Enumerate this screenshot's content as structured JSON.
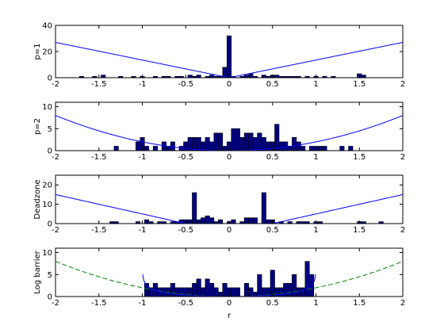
{
  "figure": {
    "background": "#ffffff",
    "axes_color": "#000000",
    "bar_fill": "#000080",
    "bar_edge": "#000000",
    "penalty_color": "#0000ff",
    "log_barrier_dashed_color": "#008000"
  },
  "chart_data": [
    {
      "type": "bar",
      "ylabel": "p=1",
      "xlim": [
        -2,
        2
      ],
      "ylim": [
        0,
        40
      ],
      "xticks": [
        -2,
        -1.5,
        -1,
        -0.5,
        0,
        0.5,
        1,
        1.5,
        2
      ],
      "xtick_labels": [
        "-2",
        "-1.5",
        "-1",
        "-0.5",
        "0",
        "0.5",
        "1",
        "1.5",
        "2"
      ],
      "yticks": [
        0,
        20,
        40
      ],
      "ytick_labels": [
        "0",
        "20",
        "40"
      ],
      "bin_width": 0.05,
      "bars": [
        {
          "x": -1.7,
          "y": 1
        },
        {
          "x": -1.55,
          "y": 1
        },
        {
          "x": -1.45,
          "y": 2
        },
        {
          "x": -1.25,
          "y": 1
        },
        {
          "x": -1.1,
          "y": 1
        },
        {
          "x": -1.0,
          "y": 1
        },
        {
          "x": -0.85,
          "y": 1
        },
        {
          "x": -0.75,
          "y": 1
        },
        {
          "x": -0.7,
          "y": 1
        },
        {
          "x": -0.6,
          "y": 1
        },
        {
          "x": -0.55,
          "y": 1
        },
        {
          "x": -0.45,
          "y": 2
        },
        {
          "x": -0.4,
          "y": 1
        },
        {
          "x": -0.35,
          "y": 2
        },
        {
          "x": -0.25,
          "y": 1
        },
        {
          "x": -0.2,
          "y": 2
        },
        {
          "x": -0.15,
          "y": 1
        },
        {
          "x": -0.1,
          "y": 1
        },
        {
          "x": -0.05,
          "y": 8
        },
        {
          "x": 0.0,
          "y": 32
        },
        {
          "x": 0.05,
          "y": 1
        },
        {
          "x": 0.15,
          "y": 1
        },
        {
          "x": 0.2,
          "y": 2
        },
        {
          "x": 0.25,
          "y": 3
        },
        {
          "x": 0.3,
          "y": 1
        },
        {
          "x": 0.4,
          "y": 2
        },
        {
          "x": 0.45,
          "y": 1
        },
        {
          "x": 0.5,
          "y": 2
        },
        {
          "x": 0.55,
          "y": 2
        },
        {
          "x": 0.6,
          "y": 1
        },
        {
          "x": 0.65,
          "y": 1
        },
        {
          "x": 0.7,
          "y": 1
        },
        {
          "x": 0.75,
          "y": 1
        },
        {
          "x": 0.8,
          "y": 1
        },
        {
          "x": 0.9,
          "y": 1
        },
        {
          "x": 1.0,
          "y": 1
        },
        {
          "x": 1.1,
          "y": 1
        },
        {
          "x": 1.2,
          "y": 1
        },
        {
          "x": 1.5,
          "y": 3
        },
        {
          "x": 1.55,
          "y": 2
        }
      ],
      "penalty_curve": {
        "kind": "abs",
        "scale": 13.5,
        "style": "solid"
      }
    },
    {
      "type": "bar",
      "ylabel": "p=2",
      "xlim": [
        -2,
        2
      ],
      "ylim": [
        0,
        11
      ],
      "xticks": [
        -2,
        -1.5,
        -1,
        -0.5,
        0,
        0.5,
        1,
        1.5,
        2
      ],
      "xtick_labels": [
        "-2",
        "-1.5",
        "-1",
        "-0.5",
        "0",
        "0.5",
        "1",
        "1.5",
        "2"
      ],
      "yticks": [
        0,
        5,
        10
      ],
      "ytick_labels": [
        "0",
        "5",
        "10"
      ],
      "bin_width": 0.05,
      "bars": [
        {
          "x": -1.3,
          "y": 1
        },
        {
          "x": -1.05,
          "y": 2
        },
        {
          "x": -1.0,
          "y": 3
        },
        {
          "x": -0.95,
          "y": 1
        },
        {
          "x": -0.85,
          "y": 1
        },
        {
          "x": -0.75,
          "y": 2
        },
        {
          "x": -0.7,
          "y": 1
        },
        {
          "x": -0.65,
          "y": 2
        },
        {
          "x": -0.55,
          "y": 1
        },
        {
          "x": -0.5,
          "y": 2
        },
        {
          "x": -0.45,
          "y": 3
        },
        {
          "x": -0.4,
          "y": 3
        },
        {
          "x": -0.35,
          "y": 3
        },
        {
          "x": -0.3,
          "y": 2
        },
        {
          "x": -0.25,
          "y": 3
        },
        {
          "x": -0.2,
          "y": 2
        },
        {
          "x": -0.15,
          "y": 4
        },
        {
          "x": -0.1,
          "y": 4
        },
        {
          "x": -0.05,
          "y": 1
        },
        {
          "x": 0.0,
          "y": 2
        },
        {
          "x": 0.05,
          "y": 5
        },
        {
          "x": 0.1,
          "y": 5
        },
        {
          "x": 0.15,
          "y": 3
        },
        {
          "x": 0.2,
          "y": 4
        },
        {
          "x": 0.25,
          "y": 4
        },
        {
          "x": 0.3,
          "y": 3
        },
        {
          "x": 0.35,
          "y": 4
        },
        {
          "x": 0.4,
          "y": 3
        },
        {
          "x": 0.45,
          "y": 2
        },
        {
          "x": 0.5,
          "y": 2
        },
        {
          "x": 0.55,
          "y": 6
        },
        {
          "x": 0.6,
          "y": 2
        },
        {
          "x": 0.65,
          "y": 2
        },
        {
          "x": 0.7,
          "y": 1
        },
        {
          "x": 0.75,
          "y": 3
        },
        {
          "x": 0.8,
          "y": 2
        },
        {
          "x": 0.85,
          "y": 1
        },
        {
          "x": 0.95,
          "y": 1
        },
        {
          "x": 1.0,
          "y": 1
        },
        {
          "x": 1.05,
          "y": 1
        },
        {
          "x": 1.1,
          "y": 1
        },
        {
          "x": 1.3,
          "y": 1
        },
        {
          "x": 1.4,
          "y": 1
        }
      ],
      "penalty_curve": {
        "kind": "square",
        "scale": 2.0,
        "style": "solid"
      }
    },
    {
      "type": "bar",
      "ylabel": "Deadzone",
      "xlim": [
        -2,
        2
      ],
      "ylim": [
        0,
        25
      ],
      "xticks": [
        -2,
        -1.5,
        -1,
        -0.5,
        0,
        0.5,
        1,
        1.5,
        2
      ],
      "xtick_labels": [
        "-2",
        "-1.5",
        "-1",
        "-0.5",
        "0",
        "0.5",
        "1",
        "1.5",
        "2"
      ],
      "yticks": [
        0,
        10,
        20
      ],
      "ytick_labels": [
        "0",
        "10",
        "20"
      ],
      "bin_width": 0.05,
      "bars": [
        {
          "x": -1.35,
          "y": 1
        },
        {
          "x": -1.3,
          "y": 1
        },
        {
          "x": -1.05,
          "y": 1
        },
        {
          "x": -0.95,
          "y": 2
        },
        {
          "x": -0.9,
          "y": 1
        },
        {
          "x": -0.8,
          "y": 1
        },
        {
          "x": -0.75,
          "y": 1
        },
        {
          "x": -0.65,
          "y": 1
        },
        {
          "x": -0.6,
          "y": 1
        },
        {
          "x": -0.55,
          "y": 2
        },
        {
          "x": -0.5,
          "y": 2
        },
        {
          "x": -0.45,
          "y": 2
        },
        {
          "x": -0.4,
          "y": 16
        },
        {
          "x": -0.35,
          "y": 2
        },
        {
          "x": -0.3,
          "y": 3
        },
        {
          "x": -0.25,
          "y": 4
        },
        {
          "x": -0.2,
          "y": 3
        },
        {
          "x": -0.15,
          "y": 1
        },
        {
          "x": -0.1,
          "y": 2
        },
        {
          "x": 0.0,
          "y": 1
        },
        {
          "x": 0.05,
          "y": 2
        },
        {
          "x": 0.15,
          "y": 1
        },
        {
          "x": 0.2,
          "y": 3
        },
        {
          "x": 0.25,
          "y": 3
        },
        {
          "x": 0.3,
          "y": 3
        },
        {
          "x": 0.4,
          "y": 16
        },
        {
          "x": 0.45,
          "y": 2
        },
        {
          "x": 0.5,
          "y": 2
        },
        {
          "x": 0.6,
          "y": 1
        },
        {
          "x": 0.7,
          "y": 1
        },
        {
          "x": 0.8,
          "y": 1
        },
        {
          "x": 0.85,
          "y": 1
        },
        {
          "x": 0.9,
          "y": 1
        },
        {
          "x": 1.0,
          "y": 1
        },
        {
          "x": 1.05,
          "y": 1
        },
        {
          "x": 1.5,
          "y": 1
        },
        {
          "x": 1.55,
          "y": 1
        },
        {
          "x": 1.75,
          "y": 1
        }
      ],
      "penalty_curve": {
        "kind": "deadzone",
        "threshold": 0.5,
        "scale": 10.0,
        "style": "solid"
      }
    },
    {
      "type": "bar",
      "ylabel": "Log barrier",
      "xlabel": "r",
      "xlim": [
        -2,
        2
      ],
      "ylim": [
        0,
        11
      ],
      "xticks": [
        -2,
        -1.5,
        -1,
        -0.5,
        0,
        0.5,
        1,
        1.5,
        2
      ],
      "xtick_labels": [
        "-2",
        "-1.5",
        "-1",
        "-0.5",
        "0",
        "0.5",
        "1",
        "1.5",
        "2"
      ],
      "yticks": [
        0,
        5,
        10
      ],
      "ytick_labels": [
        "0",
        "5",
        "10"
      ],
      "bin_width": 0.05,
      "bars": [
        {
          "x": -0.95,
          "y": 3
        },
        {
          "x": -0.9,
          "y": 2
        },
        {
          "x": -0.85,
          "y": 3
        },
        {
          "x": -0.8,
          "y": 2
        },
        {
          "x": -0.75,
          "y": 2
        },
        {
          "x": -0.7,
          "y": 2
        },
        {
          "x": -0.65,
          "y": 3
        },
        {
          "x": -0.6,
          "y": 2
        },
        {
          "x": -0.55,
          "y": 2
        },
        {
          "x": -0.5,
          "y": 2
        },
        {
          "x": -0.45,
          "y": 2
        },
        {
          "x": -0.4,
          "y": 3
        },
        {
          "x": -0.35,
          "y": 4
        },
        {
          "x": -0.3,
          "y": 2
        },
        {
          "x": -0.25,
          "y": 4
        },
        {
          "x": -0.2,
          "y": 3
        },
        {
          "x": -0.15,
          "y": 2
        },
        {
          "x": -0.1,
          "y": 1
        },
        {
          "x": -0.05,
          "y": 3
        },
        {
          "x": 0.0,
          "y": 2
        },
        {
          "x": 0.05,
          "y": 2
        },
        {
          "x": 0.1,
          "y": 2
        },
        {
          "x": 0.2,
          "y": 3
        },
        {
          "x": 0.25,
          "y": 2
        },
        {
          "x": 0.3,
          "y": 1
        },
        {
          "x": 0.35,
          "y": 5
        },
        {
          "x": 0.4,
          "y": 2
        },
        {
          "x": 0.45,
          "y": 2
        },
        {
          "x": 0.5,
          "y": 6
        },
        {
          "x": 0.55,
          "y": 2
        },
        {
          "x": 0.6,
          "y": 2
        },
        {
          "x": 0.65,
          "y": 3
        },
        {
          "x": 0.7,
          "y": 3
        },
        {
          "x": 0.75,
          "y": 5
        },
        {
          "x": 0.8,
          "y": 2
        },
        {
          "x": 0.85,
          "y": 2
        },
        {
          "x": 0.9,
          "y": 8
        },
        {
          "x": 0.95,
          "y": 5
        }
      ],
      "penalty_curve": {
        "kind": "logbarrier",
        "scale": 1.1,
        "style": "solid"
      },
      "reference_curve": {
        "kind": "square",
        "scale": 2.0,
        "style": "dashed"
      }
    }
  ]
}
